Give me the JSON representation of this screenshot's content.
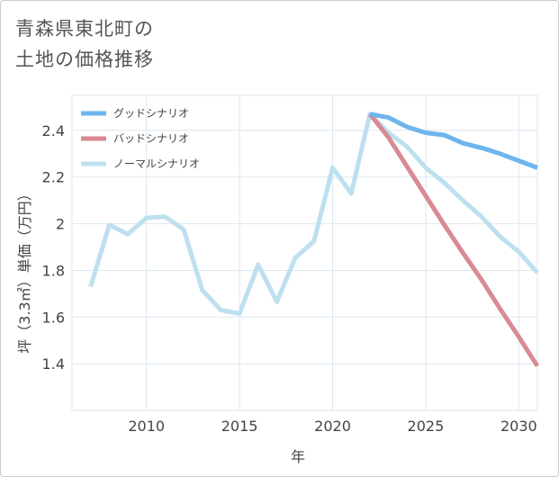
{
  "chart_data": {
    "type": "line",
    "title": "青森県東北町の\n土地の価格推移",
    "xlabel": "年",
    "ylabel": "坪（3.3㎡）単価（万円）",
    "xlim": [
      2006,
      2031
    ],
    "ylim": [
      1.2,
      2.55
    ],
    "x_ticks": [
      2010,
      2015,
      2020,
      2025,
      2030
    ],
    "x_tick_labels": [
      "2010",
      "2015",
      "2020",
      "2025",
      "2030"
    ],
    "y_ticks": [
      1.4,
      1.6,
      1.8,
      2.0,
      2.2,
      2.4
    ],
    "y_tick_labels": [
      "1.4",
      "1.6",
      "1.8",
      "2",
      "2.2",
      "2.4"
    ],
    "grid": true,
    "legend_position": "top-left",
    "series": [
      {
        "name": "グッドシナリオ",
        "color": "#6db5ee",
        "x": [
          2022,
          2023,
          2024,
          2025,
          2026,
          2027,
          2028,
          2029,
          2030,
          2031
        ],
        "values": [
          2.47,
          2.455,
          2.415,
          2.39,
          2.38,
          2.345,
          2.325,
          2.3,
          2.27,
          2.24
        ]
      },
      {
        "name": "バッドシナリオ",
        "color": "#d98a92",
        "x": [
          2022,
          2023,
          2024,
          2025,
          2026,
          2027,
          2028,
          2029,
          2030,
          2031
        ],
        "values": [
          2.47,
          2.37,
          2.245,
          2.12,
          1.995,
          1.875,
          1.76,
          1.635,
          1.515,
          1.39
        ]
      },
      {
        "name": "ノーマルシナリオ",
        "color": "#bde0ef",
        "x": [
          2007,
          2008,
          2009,
          2010,
          2011,
          2012,
          2013,
          2014,
          2015,
          2016,
          2017,
          2018,
          2019,
          2020,
          2021,
          2022,
          2023,
          2024,
          2025,
          2026,
          2027,
          2028,
          2029,
          2030,
          2031
        ],
        "values": [
          1.73,
          1.995,
          1.955,
          2.025,
          2.03,
          1.975,
          1.715,
          1.63,
          1.615,
          1.825,
          1.665,
          1.855,
          1.925,
          2.24,
          2.13,
          2.47,
          2.39,
          2.33,
          2.24,
          2.175,
          2.1,
          2.03,
          1.945,
          1.88,
          1.79
        ]
      }
    ]
  }
}
